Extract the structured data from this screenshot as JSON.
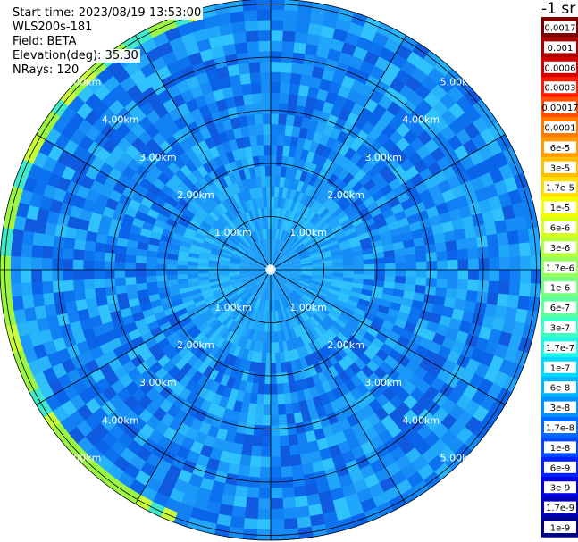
{
  "info": {
    "start_time": "Start time: 2023/08/19 13:53:00",
    "instrument": "WLS200s-181",
    "field": "Field: BETA",
    "elevation": "Elevation(deg): 35.30",
    "nrays": "NRays: 120"
  },
  "colorbar": {
    "unit_title": "-1 sr",
    "labels": [
      "0.0017",
      "0.001",
      "0.0006",
      "0.0003",
      "0.00017",
      "0.0001",
      "6e-5",
      "3e-5",
      "1.7e-5",
      "1e-5",
      "6e-6",
      "3e-6",
      "1.7e-6",
      "1e-6",
      "6e-7",
      "3e-7",
      "1.7e-7",
      "1e-7",
      "6e-8",
      "3e-8",
      "1.7e-8",
      "1e-8",
      "6e-9",
      "3e-9",
      "1.7e-9",
      "1e-9"
    ],
    "colors": [
      "#7a0000",
      "#a80000",
      "#d40000",
      "#ff1a00",
      "#ff5000",
      "#ff7a00",
      "#ff9a00",
      "#ffbe00",
      "#ffdd00",
      "#f6ff00",
      "#d8ff1a",
      "#b8ff3c",
      "#98ff5c",
      "#78ff7e",
      "#5cffa0",
      "#3cffc4",
      "#20f4e4",
      "#00d8ff",
      "#00b4ff",
      "#0090ff",
      "#006cff",
      "#0048ff",
      "#0020ff",
      "#0000e8",
      "#0000b8",
      "#000088"
    ]
  },
  "chart_data": {
    "type": "heatmap",
    "projection": "polar (PPI scan)",
    "field": "BETA",
    "unit": "sr^-1",
    "colorscale": "log",
    "n_rays": 120,
    "range_rings_km": [
      1,
      2,
      3,
      4,
      5
    ],
    "range_ring_labels": [
      "1.00km",
      "2.00km",
      "3.00km",
      "4.00km",
      "5.00km"
    ],
    "azimuth_spokes_deg": [
      0,
      30,
      60,
      90,
      120,
      150,
      180,
      210,
      240,
      270,
      300,
      330
    ],
    "max_range_km": 5.6,
    "dominant_value_range": [
      "6e-8",
      "3e-7"
    ],
    "near_field_value": "1.7e-7",
    "arc_feature": {
      "azimuth_deg": [
        200,
        345
      ],
      "range_km": [
        5.0,
        5.3
      ],
      "value": "1.7e-6"
    }
  }
}
